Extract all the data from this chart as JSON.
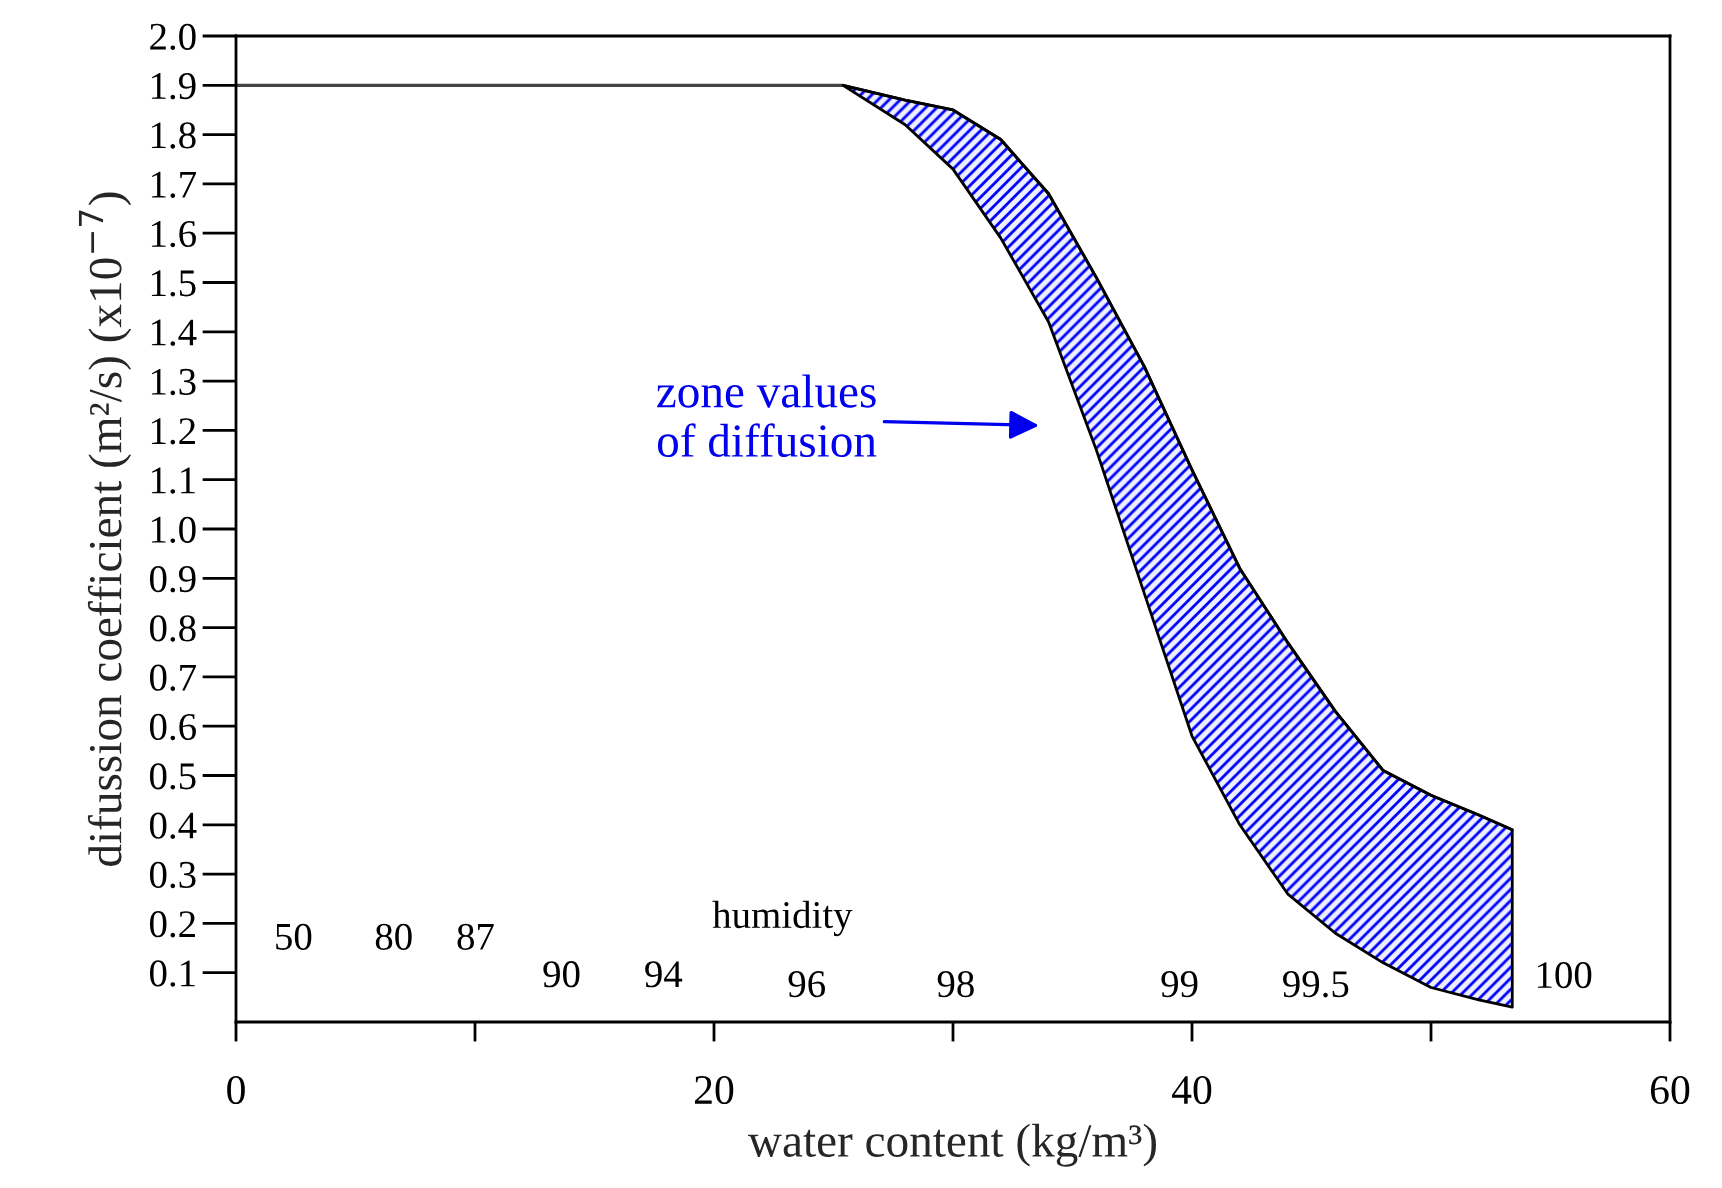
{
  "chart_data": {
    "type": "line",
    "xlabel": "water content (kg/m³)",
    "ylabel": "difussion coefficient (m²/s) (x10$^{−7}$)",
    "series": [
      {
        "color": "#444444",
        "x": [
          0,
          25.4
        ],
        "values": [
          1.9,
          1.9
        ]
      },
      {
        "type": "line",
        "color": "#000000",
        "x": [
          25.4,
          28,
          30,
          32,
          34,
          36,
          38,
          40,
          42,
          44,
          46,
          48,
          50,
          52,
          53.4
        ],
        "values": [
          1.9,
          1.87,
          1.85,
          1.79,
          1.68,
          1.51,
          1.33,
          1.12,
          0.92,
          0.77,
          0.63,
          0.51,
          0.46,
          0.42,
          0.39
        ],
        "upper": [
          1.9,
          1.87,
          1.85,
          1.79,
          1.68,
          1.51,
          1.33,
          1.12,
          0.92,
          0.77,
          0.63,
          0.51,
          0.46,
          0.42,
          0.39
        ],
        "lower": [
          1.9,
          1.82,
          1.73,
          1.59,
          1.42,
          1.16,
          0.87,
          0.58,
          0.4,
          0.26,
          0.18,
          0.12,
          0.07,
          0.045,
          0.03
        ]
      }
    ],
    "annotations": [
      "zone values\nof diffusion",
      "humidity",
      "50",
      "80",
      "87",
      "90",
      "94",
      "96",
      "98",
      "99",
      "99.5",
      {
        "text": "100",
        "x": 53.4,
        "y": 0.03
      }
    ],
    "xlim": [
      0,
      60
    ],
    "xticks": [
      0,
      {
        "value": 10,
        "label": null
      },
      20,
      {
        "value": 30,
        "label": null
      },
      40,
      {
        "value": 50,
        "label": null
      },
      60
    ],
    "ylim": [
      0,
      2.0
    ],
    "yticks": [
      0.1,
      0.2,
      0.3,
      0.4,
      0.5,
      0.6,
      0.7,
      0.8,
      0.9,
      {
        "value": 1,
        "label": "1.0"
      },
      1.1,
      1.2,
      1.3,
      1.4,
      1.5,
      1.6,
      1.7,
      1.8,
      1.9,
      {
        "value": 2,
        "label": "2.0"
      }
    ],
    "grid": false
  }
}
